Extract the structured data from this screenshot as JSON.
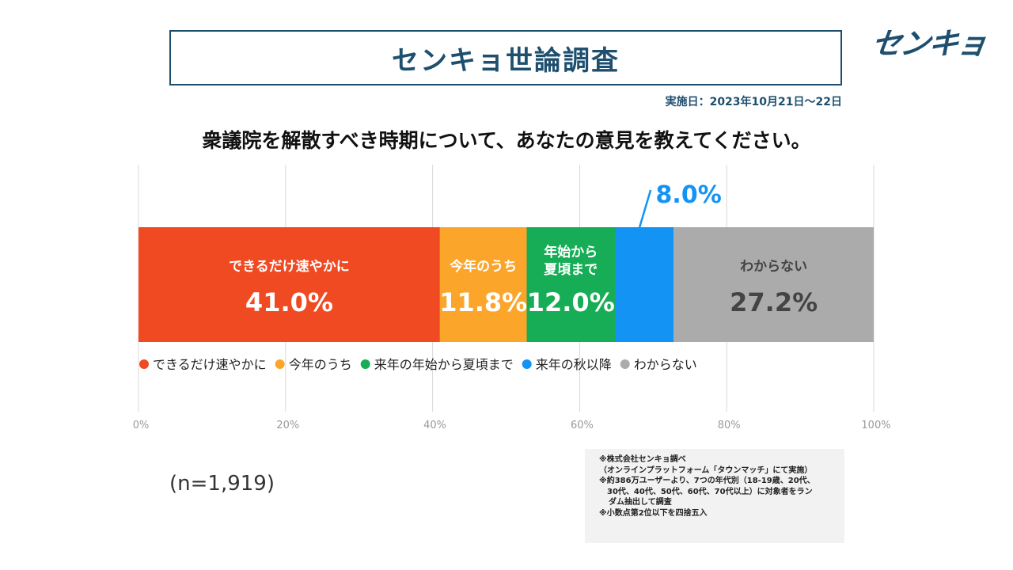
{
  "header": {
    "title": "センキョ世論調査",
    "logo_text": "センキョ",
    "survey_date": "実施日：2023年10月21日〜22日"
  },
  "question": "衆議院を解散すべき時期について、あなたの意見を教えてください。",
  "sample_size": "(n=1,919)",
  "notes": [
    "※株式会社センキョ調べ",
    "（オンラインプラットフォーム「タウンマッチ」にて実施）",
    "※約386万ユーザーより、7つの年代別（18-19歳、20代、",
    "30代、40代、50代、60代、70代以上）に対象者をラン",
    "ダム抽出して調査",
    "※小数点第2位以下を四捨五入"
  ],
  "colors": {
    "brand": "#1e4f6e",
    "asap": "#f04a23",
    "this_year": "#fba62b",
    "next_year_start": "#17ad56",
    "next_autumn": "#1394f5",
    "dont_know": "#ababab",
    "grid": "#d9d9d9"
  },
  "chart_data": {
    "type": "bar",
    "orientation": "horizontal-stacked",
    "xlim": [
      0,
      100
    ],
    "xticks": [
      "0%",
      "20%",
      "40%",
      "60%",
      "80%",
      "100%"
    ],
    "grid": true,
    "legend_position": "below-bar",
    "series": [
      {
        "name": "できるだけ速やかに",
        "bar_label": [
          "できるだけ速やかに"
        ],
        "value": 41.0,
        "value_label": "41.0%",
        "color": "#f04a23",
        "label_color": "#ffffff"
      },
      {
        "name": "今年のうち",
        "bar_label": [
          "今年のうち"
        ],
        "value": 11.8,
        "value_label": "11.8%",
        "color": "#fba62b",
        "label_color": "#ffffff"
      },
      {
        "name": "来年の年始から夏頃まで",
        "bar_label": [
          "年始から",
          "夏頃まで"
        ],
        "value": 12.0,
        "value_label": "12.0%",
        "color": "#17ad56",
        "label_color": "#ffffff"
      },
      {
        "name": "来年の秋以降",
        "bar_label": [],
        "value": 8.0,
        "value_label": "8.0%",
        "color": "#1394f5",
        "label_color": "#1394f5",
        "callout": true
      },
      {
        "name": "わからない",
        "bar_label": [
          "わからない"
        ],
        "value": 27.2,
        "value_label": "27.2%",
        "color": "#ababab",
        "label_color": "#444444"
      }
    ]
  }
}
